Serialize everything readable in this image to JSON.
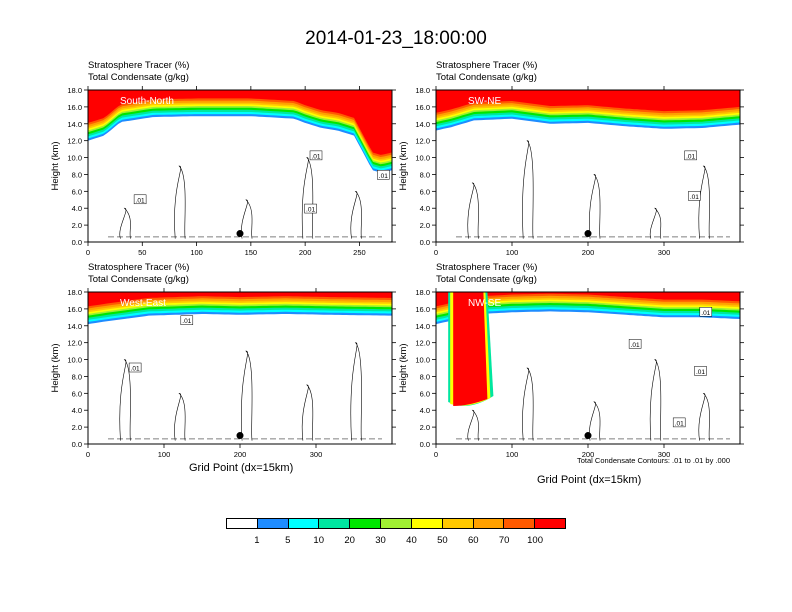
{
  "title": "2014-01-23_18:00:00",
  "colorbar": {
    "labels": [
      "1",
      "5",
      "10",
      "20",
      "30",
      "40",
      "50",
      "60",
      "70",
      "100"
    ],
    "colors": [
      "#ffffff",
      "#1e8cff",
      "#00ffff",
      "#00e6a0",
      "#00e600",
      "#a0f032",
      "#ffff00",
      "#ffc800",
      "#ffa000",
      "#ff5a00",
      "#ff0000"
    ]
  },
  "footnote": "Total Condensate Contours: .01 to .01 by .000",
  "chart_data": [
    {
      "type": "heatmap",
      "header_line1": "Stratosphere Tracer   (%)",
      "header_line2": "Total Condensate   (g/kg)",
      "panel_label": "South-North",
      "ylabel": "Height (km)",
      "xlabel": "",
      "xlim": [
        0,
        280
      ],
      "ylim": [
        0,
        18
      ],
      "xticks": [
        0,
        50,
        100,
        150,
        200,
        250
      ],
      "xtick_labels": [
        "0",
        "50",
        "100",
        "150",
        "200",
        "250"
      ],
      "yticks": [
        0,
        2,
        4,
        6,
        8,
        10,
        12,
        14,
        16,
        18
      ],
      "ytick_labels": [
        "0.0",
        "2.0",
        "4.0",
        "6.0",
        "8.0",
        "10.0",
        "12.0",
        "14.0",
        "16.0",
        "18.0"
      ],
      "contour_labels": [
        {
          "x": 48,
          "y": 5.0,
          "text": ".01"
        },
        {
          "x": 210,
          "y": 10.2,
          "text": ".01"
        },
        {
          "x": 272,
          "y": 7.9,
          "text": ".01"
        },
        {
          "x": 205,
          "y": 3.9,
          "text": ".01"
        }
      ],
      "marker": {
        "x": 140,
        "y": 1.0
      },
      "tracer_profile": {
        "x": [
          0,
          15,
          30,
          60,
          100,
          150,
          190,
          200,
          215,
          230,
          245,
          255,
          262,
          270,
          280
        ],
        "base_km": [
          12.0,
          12.6,
          14.2,
          14.8,
          14.9,
          14.9,
          14.6,
          14.1,
          13.5,
          13.2,
          12.6,
          10.2,
          8.5,
          8.2,
          8.5
        ]
      }
    },
    {
      "type": "heatmap",
      "header_line1": "Stratosphere Tracer   (%)",
      "header_line2": "Total Condensate   (g/kg)",
      "panel_label": "SW-NE",
      "ylabel": "Height (km)",
      "xlabel": "",
      "xlim": [
        0,
        400
      ],
      "ylim": [
        0,
        18
      ],
      "xticks": [
        0,
        100,
        200,
        300
      ],
      "xtick_labels": [
        "0",
        "100",
        "200",
        "300"
      ],
      "yticks": [
        0,
        2,
        4,
        6,
        8,
        10,
        12,
        14,
        16,
        18
      ],
      "ytick_labels": [
        "0.0",
        "2.0",
        "4.0",
        "6.0",
        "8.0",
        "10.0",
        "12.0",
        "14.0",
        "16.0",
        "18.0"
      ],
      "contour_labels": [
        {
          "x": 335,
          "y": 10.2,
          "text": ".01"
        },
        {
          "x": 340,
          "y": 5.4,
          "text": ".01"
        }
      ],
      "marker": {
        "x": 200,
        "y": 1.0
      },
      "tracer_profile": {
        "x": [
          0,
          20,
          50,
          100,
          150,
          200,
          250,
          300,
          350,
          400
        ],
        "base_km": [
          13.2,
          13.6,
          14.4,
          14.6,
          14.0,
          14.1,
          13.7,
          13.4,
          13.5,
          13.9
        ]
      }
    },
    {
      "type": "heatmap",
      "header_line1": "Stratosphere Tracer   (%)",
      "header_line2": "Total Condensate   (g/kg)",
      "panel_label": "West-East",
      "ylabel": "Height (km)",
      "xlabel": "Grid Point (dx=15km)",
      "xlim": [
        0,
        400
      ],
      "ylim": [
        0,
        18
      ],
      "xticks": [
        0,
        100,
        200,
        300
      ],
      "xtick_labels": [
        "0",
        "100",
        "200",
        "300"
      ],
      "yticks": [
        0,
        2,
        4,
        6,
        8,
        10,
        12,
        14,
        16,
        18
      ],
      "ytick_labels": [
        "0.0",
        "2.0",
        "4.0",
        "6.0",
        "8.0",
        "10.0",
        "12.0",
        "14.0",
        "16.0",
        "18.0"
      ],
      "contour_labels": [
        {
          "x": 130,
          "y": 14.6,
          "text": ".01"
        },
        {
          "x": 62,
          "y": 9.0,
          "text": ".01"
        }
      ],
      "marker": {
        "x": 200,
        "y": 1.0
      },
      "tracer_profile": {
        "x": [
          0,
          30,
          80,
          150,
          200,
          260,
          320,
          400
        ],
        "base_km": [
          14.2,
          14.6,
          15.2,
          15.4,
          15.3,
          15.4,
          15.3,
          15.2
        ]
      }
    },
    {
      "type": "heatmap",
      "header_line1": "Stratosphere Tracer   (%)",
      "header_line2": "Total Condensate   (g/kg)",
      "panel_label": "NW-SE",
      "ylabel": "Height (km)",
      "xlabel": "Grid Point (dx=15km)",
      "xlim": [
        0,
        400
      ],
      "ylim": [
        0,
        18
      ],
      "xticks": [
        0,
        100,
        200,
        300
      ],
      "xtick_labels": [
        "0",
        "100",
        "200",
        "300"
      ],
      "yticks": [
        0,
        2,
        4,
        6,
        8,
        10,
        12,
        14,
        16,
        18
      ],
      "ytick_labels": [
        "0.0",
        "2.0",
        "4.0",
        "6.0",
        "8.0",
        "10.0",
        "12.0",
        "14.0",
        "16.0",
        "18.0"
      ],
      "contour_labels": [
        {
          "x": 355,
          "y": 15.6,
          "text": ".01"
        },
        {
          "x": 262,
          "y": 11.8,
          "text": ".01"
        },
        {
          "x": 348,
          "y": 8.6,
          "text": ".01"
        },
        {
          "x": 320,
          "y": 2.5,
          "text": ".01"
        }
      ],
      "marker": {
        "x": 200,
        "y": 1.0
      },
      "tracer_profile": {
        "x": [
          0,
          20,
          60,
          100,
          150,
          200,
          250,
          300,
          350,
          400
        ],
        "base_km": [
          14.2,
          14.6,
          15.4,
          15.6,
          15.7,
          15.6,
          15.3,
          15.0,
          15.0,
          14.8
        ]
      },
      "intrusion": {
        "x_from": 20,
        "x_to": 65,
        "bottom_km": 4.5
      }
    }
  ]
}
